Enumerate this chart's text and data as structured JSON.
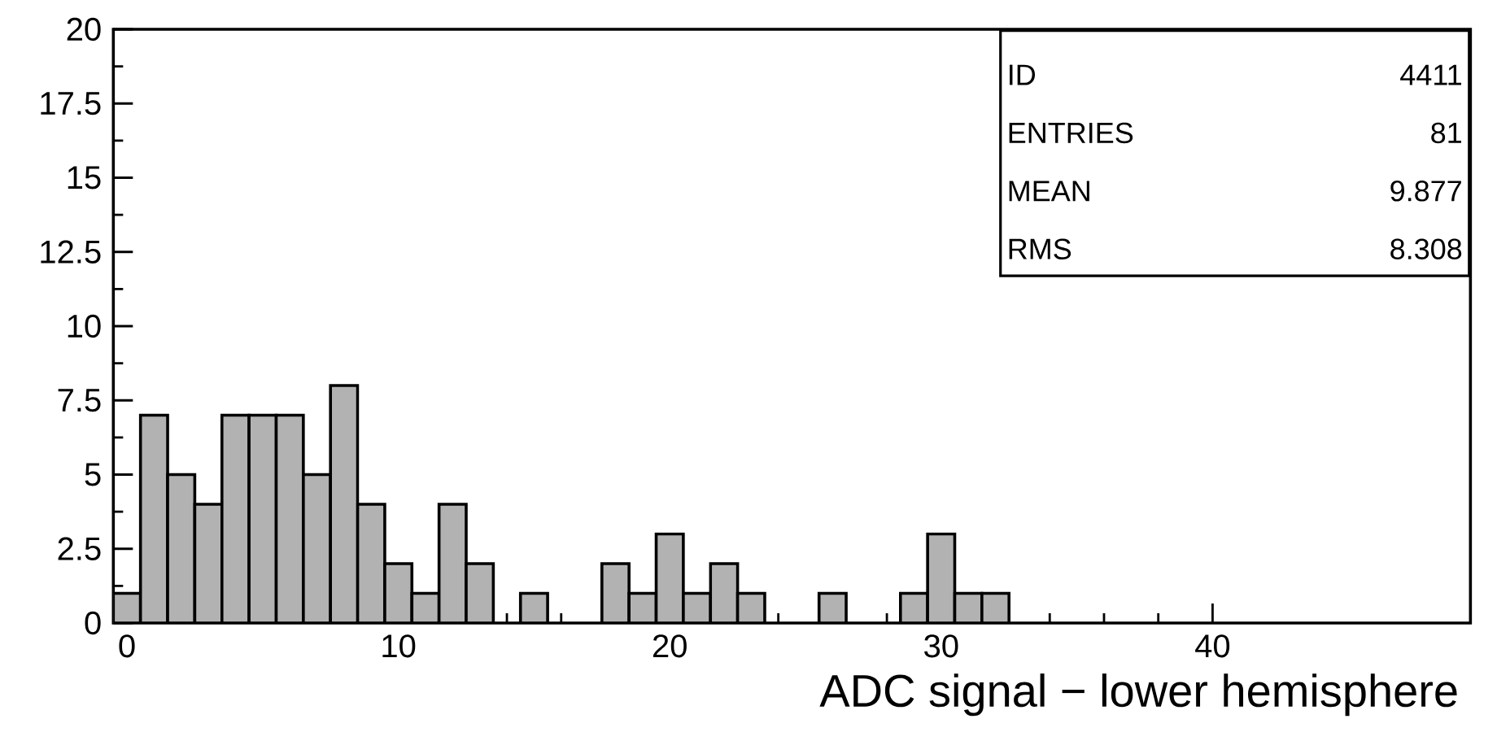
{
  "chart_data": {
    "type": "histogram",
    "xlabel": "ADC signal − lower hemisphere",
    "bins": [
      -0.5,
      0.5,
      1.5,
      2.5,
      3.5,
      4.5,
      5.5,
      6.5,
      7.5,
      8.5,
      9.5,
      10.5,
      11.5,
      12.5,
      13.5,
      14.5,
      15.5,
      16.5,
      17.5,
      18.5,
      19.5,
      20.5,
      21.5,
      22.5,
      23.5,
      24.5,
      25.5,
      26.5,
      27.5,
      28.5,
      29.5,
      30.5,
      31.5,
      32.5
    ],
    "values": [
      1,
      7,
      5,
      4,
      7,
      7,
      7,
      5,
      8,
      4,
      2,
      1,
      4,
      2,
      0,
      1,
      0,
      0,
      2,
      1,
      3,
      1,
      2,
      1,
      0,
      0,
      1,
      0,
      0,
      1,
      3,
      1,
      1
    ],
    "color": "#000000",
    "xlim": [
      -0.5,
      49.5
    ],
    "ylim": [
      0,
      20
    ],
    "xticks": [
      0,
      10,
      20,
      30,
      40
    ],
    "yticks": [
      0,
      2.5,
      5,
      7.5,
      10,
      12.5,
      15,
      17.5,
      20
    ],
    "grid": false,
    "annotations": [
      "ID",
      "4411",
      "ENTRIES",
      "81",
      "MEAN",
      "9.877",
      "RMS",
      "8.308"
    ]
  }
}
